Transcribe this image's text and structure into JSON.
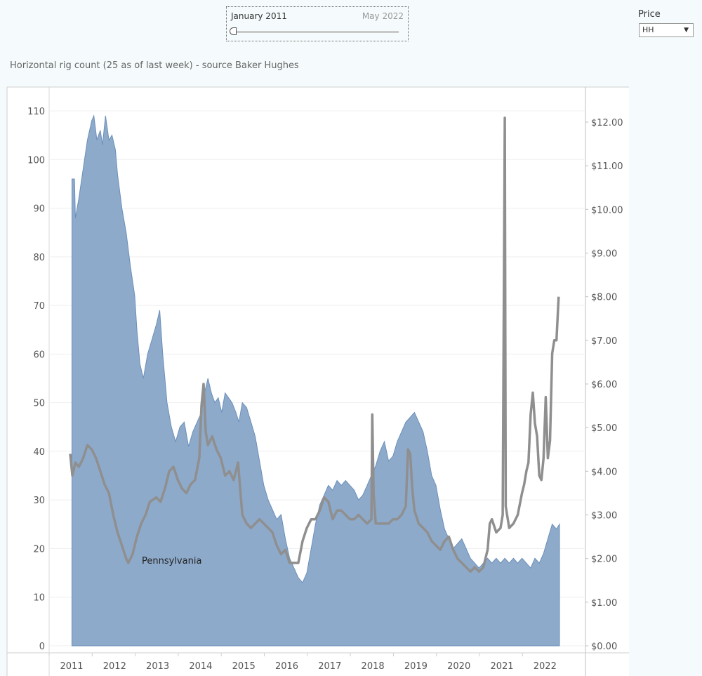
{
  "date_filter": {
    "start_label": "January 2011",
    "end_label": "May 2022"
  },
  "price_filter": {
    "label": "Price",
    "selected": "HH"
  },
  "chart_data": {
    "type": "area",
    "title": "Horizontal rig count (25 as of last week) - source Baker Hughes",
    "annotation": "Pennsylvania",
    "x_ticks": [
      "2011",
      "2012",
      "2013",
      "2014",
      "2015",
      "2016",
      "2017",
      "2018",
      "2019",
      "2020",
      "2021",
      "2022"
    ],
    "y_left": {
      "ticks": [
        "0",
        "10",
        "20",
        "30",
        "40",
        "50",
        "60",
        "70",
        "80",
        "90",
        "100",
        "110"
      ],
      "range": [
        0,
        115
      ]
    },
    "y_right": {
      "ticks": [
        "$0.00",
        "$1.00",
        "$2.00",
        "$3.00",
        "$4.00",
        "$5.00",
        "$6.00",
        "$7.00",
        "$8.00",
        "$9.00",
        "$10.00",
        "$11.00",
        "$12.00"
      ],
      "range": [
        0,
        12.5
      ]
    },
    "colors": {
      "area": "#8eaacb",
      "area_line": "#6b8fb8",
      "price": "#8f8f8f"
    },
    "series": [
      {
        "kind": "area",
        "axis": "left",
        "points": [
          [
            2011.04,
            96
          ],
          [
            2011.1,
            96
          ],
          [
            2011.12,
            88
          ],
          [
            2011.2,
            92
          ],
          [
            2011.3,
            98
          ],
          [
            2011.4,
            104
          ],
          [
            2011.5,
            108
          ],
          [
            2011.55,
            109
          ],
          [
            2011.62,
            104
          ],
          [
            2011.7,
            106
          ],
          [
            2011.75,
            103
          ],
          [
            2011.82,
            109
          ],
          [
            2011.9,
            104
          ],
          [
            2011.97,
            105
          ],
          [
            2012.05,
            102
          ],
          [
            2012.1,
            97
          ],
          [
            2012.2,
            90
          ],
          [
            2012.3,
            85
          ],
          [
            2012.4,
            78
          ],
          [
            2012.5,
            72
          ],
          [
            2012.55,
            65
          ],
          [
            2012.62,
            58
          ],
          [
            2012.7,
            55
          ],
          [
            2012.8,
            60
          ],
          [
            2012.9,
            63
          ],
          [
            2013.0,
            66
          ],
          [
            2013.08,
            69
          ],
          [
            2013.15,
            60
          ],
          [
            2013.25,
            50
          ],
          [
            2013.35,
            45
          ],
          [
            2013.45,
            42
          ],
          [
            2013.55,
            45
          ],
          [
            2013.65,
            46
          ],
          [
            2013.75,
            41
          ],
          [
            2013.85,
            44
          ],
          [
            2013.95,
            46
          ],
          [
            2014.05,
            48
          ],
          [
            2014.12,
            52
          ],
          [
            2014.2,
            55
          ],
          [
            2014.28,
            52
          ],
          [
            2014.36,
            50
          ],
          [
            2014.44,
            51
          ],
          [
            2014.52,
            48
          ],
          [
            2014.6,
            52
          ],
          [
            2014.68,
            51
          ],
          [
            2014.76,
            50
          ],
          [
            2014.85,
            48
          ],
          [
            2014.92,
            46
          ],
          [
            2015.0,
            50
          ],
          [
            2015.1,
            49
          ],
          [
            2015.2,
            46
          ],
          [
            2015.3,
            43
          ],
          [
            2015.4,
            38
          ],
          [
            2015.5,
            33
          ],
          [
            2015.6,
            30
          ],
          [
            2015.7,
            28
          ],
          [
            2015.8,
            26
          ],
          [
            2015.9,
            27
          ],
          [
            2016.0,
            22
          ],
          [
            2016.1,
            18
          ],
          [
            2016.2,
            16
          ],
          [
            2016.3,
            14
          ],
          [
            2016.4,
            13
          ],
          [
            2016.5,
            15
          ],
          [
            2016.6,
            20
          ],
          [
            2016.7,
            25
          ],
          [
            2016.8,
            29
          ],
          [
            2016.9,
            31
          ],
          [
            2017.0,
            33
          ],
          [
            2017.1,
            32
          ],
          [
            2017.2,
            34
          ],
          [
            2017.3,
            33
          ],
          [
            2017.4,
            34
          ],
          [
            2017.5,
            33
          ],
          [
            2017.6,
            32
          ],
          [
            2017.7,
            30
          ],
          [
            2017.8,
            31
          ],
          [
            2017.9,
            33
          ],
          [
            2018.0,
            35
          ],
          [
            2018.1,
            37
          ],
          [
            2018.2,
            40
          ],
          [
            2018.3,
            42
          ],
          [
            2018.4,
            38
          ],
          [
            2018.5,
            39
          ],
          [
            2018.6,
            42
          ],
          [
            2018.7,
            44
          ],
          [
            2018.8,
            46
          ],
          [
            2018.9,
            47
          ],
          [
            2019.0,
            48
          ],
          [
            2019.1,
            46
          ],
          [
            2019.2,
            44
          ],
          [
            2019.3,
            40
          ],
          [
            2019.4,
            35
          ],
          [
            2019.5,
            33
          ],
          [
            2019.6,
            28
          ],
          [
            2019.7,
            24
          ],
          [
            2019.8,
            22
          ],
          [
            2019.9,
            20
          ],
          [
            2020.0,
            21
          ],
          [
            2020.1,
            22
          ],
          [
            2020.2,
            20
          ],
          [
            2020.3,
            18
          ],
          [
            2020.4,
            17
          ],
          [
            2020.5,
            16
          ],
          [
            2020.6,
            17
          ],
          [
            2020.7,
            18
          ],
          [
            2020.8,
            17
          ],
          [
            2020.9,
            18
          ],
          [
            2021.0,
            17
          ],
          [
            2021.1,
            18
          ],
          [
            2021.2,
            17
          ],
          [
            2021.3,
            18
          ],
          [
            2021.4,
            17
          ],
          [
            2021.5,
            18
          ],
          [
            2021.6,
            17
          ],
          [
            2021.7,
            16
          ],
          [
            2021.8,
            18
          ],
          [
            2021.9,
            17
          ],
          [
            2022.0,
            19
          ],
          [
            2022.1,
            22
          ],
          [
            2022.2,
            25
          ],
          [
            2022.3,
            24
          ],
          [
            2022.37,
            25
          ]
        ]
      },
      {
        "kind": "line",
        "axis": "right",
        "name": "HH",
        "points": [
          [
            2011.0,
            4.4
          ],
          [
            2011.05,
            3.9
          ],
          [
            2011.12,
            4.2
          ],
          [
            2011.2,
            4.1
          ],
          [
            2011.3,
            4.3
          ],
          [
            2011.4,
            4.6
          ],
          [
            2011.5,
            4.5
          ],
          [
            2011.6,
            4.3
          ],
          [
            2011.7,
            4.0
          ],
          [
            2011.8,
            3.7
          ],
          [
            2011.9,
            3.5
          ],
          [
            2012.0,
            3.0
          ],
          [
            2012.1,
            2.6
          ],
          [
            2012.2,
            2.3
          ],
          [
            2012.3,
            2.0
          ],
          [
            2012.35,
            1.9
          ],
          [
            2012.45,
            2.1
          ],
          [
            2012.55,
            2.5
          ],
          [
            2012.65,
            2.8
          ],
          [
            2012.75,
            3.0
          ],
          [
            2012.85,
            3.3
          ],
          [
            2013.0,
            3.4
          ],
          [
            2013.1,
            3.3
          ],
          [
            2013.2,
            3.6
          ],
          [
            2013.3,
            4.0
          ],
          [
            2013.4,
            4.1
          ],
          [
            2013.5,
            3.8
          ],
          [
            2013.6,
            3.6
          ],
          [
            2013.7,
            3.5
          ],
          [
            2013.8,
            3.7
          ],
          [
            2013.9,
            3.8
          ],
          [
            2014.0,
            4.3
          ],
          [
            2014.05,
            5.5
          ],
          [
            2014.1,
            6.0
          ],
          [
            2014.15,
            4.9
          ],
          [
            2014.2,
            4.6
          ],
          [
            2014.3,
            4.8
          ],
          [
            2014.4,
            4.5
          ],
          [
            2014.5,
            4.3
          ],
          [
            2014.6,
            3.9
          ],
          [
            2014.7,
            4.0
          ],
          [
            2014.8,
            3.8
          ],
          [
            2014.9,
            4.2
          ],
          [
            2015.0,
            3.0
          ],
          [
            2015.1,
            2.8
          ],
          [
            2015.2,
            2.7
          ],
          [
            2015.3,
            2.8
          ],
          [
            2015.4,
            2.9
          ],
          [
            2015.5,
            2.8
          ],
          [
            2015.6,
            2.7
          ],
          [
            2015.7,
            2.6
          ],
          [
            2015.8,
            2.3
          ],
          [
            2015.9,
            2.1
          ],
          [
            2016.0,
            2.2
          ],
          [
            2016.1,
            1.9
          ],
          [
            2016.2,
            1.9
          ],
          [
            2016.3,
            1.9
          ],
          [
            2016.4,
            2.4
          ],
          [
            2016.5,
            2.7
          ],
          [
            2016.6,
            2.9
          ],
          [
            2016.7,
            2.9
          ],
          [
            2016.8,
            3.1
          ],
          [
            2016.9,
            3.4
          ],
          [
            2017.0,
            3.3
          ],
          [
            2017.1,
            2.9
          ],
          [
            2017.2,
            3.1
          ],
          [
            2017.3,
            3.1
          ],
          [
            2017.4,
            3.0
          ],
          [
            2017.5,
            2.9
          ],
          [
            2017.6,
            2.9
          ],
          [
            2017.7,
            3.0
          ],
          [
            2017.8,
            2.9
          ],
          [
            2017.9,
            2.8
          ],
          [
            2018.0,
            2.9
          ],
          [
            2018.02,
            5.3
          ],
          [
            2018.05,
            3.5
          ],
          [
            2018.1,
            2.8
          ],
          [
            2018.2,
            2.8
          ],
          [
            2018.3,
            2.8
          ],
          [
            2018.4,
            2.8
          ],
          [
            2018.5,
            2.9
          ],
          [
            2018.6,
            2.9
          ],
          [
            2018.7,
            3.0
          ],
          [
            2018.8,
            3.2
          ],
          [
            2018.85,
            4.5
          ],
          [
            2018.9,
            4.4
          ],
          [
            2018.95,
            3.6
          ],
          [
            2019.0,
            3.1
          ],
          [
            2019.1,
            2.8
          ],
          [
            2019.2,
            2.7
          ],
          [
            2019.3,
            2.6
          ],
          [
            2019.4,
            2.4
          ],
          [
            2019.5,
            2.3
          ],
          [
            2019.6,
            2.2
          ],
          [
            2019.7,
            2.4
          ],
          [
            2019.8,
            2.5
          ],
          [
            2019.9,
            2.2
          ],
          [
            2020.0,
            2.0
          ],
          [
            2020.1,
            1.9
          ],
          [
            2020.2,
            1.8
          ],
          [
            2020.3,
            1.7
          ],
          [
            2020.4,
            1.8
          ],
          [
            2020.5,
            1.7
          ],
          [
            2020.6,
            1.8
          ],
          [
            2020.7,
            2.2
          ],
          [
            2020.75,
            2.8
          ],
          [
            2020.8,
            2.9
          ],
          [
            2020.9,
            2.6
          ],
          [
            2021.0,
            2.7
          ],
          [
            2021.05,
            3.0
          ],
          [
            2021.1,
            12.1
          ],
          [
            2021.12,
            3.2
          ],
          [
            2021.2,
            2.7
          ],
          [
            2021.3,
            2.8
          ],
          [
            2021.4,
            3.0
          ],
          [
            2021.5,
            3.5
          ],
          [
            2021.55,
            3.7
          ],
          [
            2021.6,
            4.0
          ],
          [
            2021.65,
            4.2
          ],
          [
            2021.7,
            5.3
          ],
          [
            2021.75,
            5.8
          ],
          [
            2021.8,
            5.1
          ],
          [
            2021.85,
            4.8
          ],
          [
            2021.9,
            3.9
          ],
          [
            2021.95,
            3.8
          ],
          [
            2022.0,
            4.3
          ],
          [
            2022.05,
            5.7
          ],
          [
            2022.1,
            4.3
          ],
          [
            2022.15,
            4.7
          ],
          [
            2022.2,
            6.7
          ],
          [
            2022.25,
            7.0
          ],
          [
            2022.3,
            7.0
          ],
          [
            2022.35,
            8.0
          ]
        ]
      }
    ]
  }
}
